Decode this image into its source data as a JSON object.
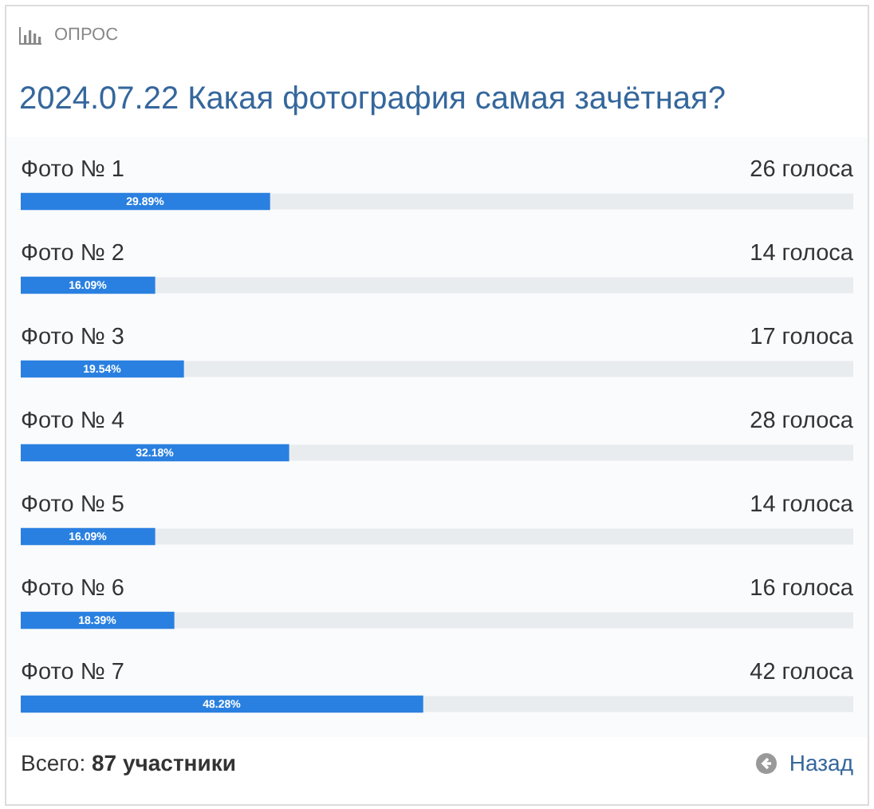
{
  "chart_data": {
    "type": "bar",
    "orientation": "horizontal",
    "subtitle": "ОПРОС",
    "title": "2024.07.22 Какая фотография самая зачётная?",
    "categories": [
      "Фото № 1",
      "Фото № 2",
      "Фото № 3",
      "Фото № 4",
      "Фото № 5",
      "Фото № 6",
      "Фото № 7"
    ],
    "values": [
      29.89,
      16.09,
      19.54,
      32.18,
      16.09,
      18.39,
      48.28
    ],
    "value_labels": [
      "29.89%",
      "16.09%",
      "19.54%",
      "32.18%",
      "16.09%",
      "18.39%",
      "48.28%"
    ],
    "color": "#2a80e0",
    "xlim": [
      0,
      100
    ],
    "legend": false,
    "annotations": [
      "26 голоса",
      "14 голоса",
      "17 голоса",
      "28 голоса",
      "14 голоса",
      "16 голоса",
      "42 голоса",
      "Всего: 87 участники",
      "Назад"
    ]
  }
}
